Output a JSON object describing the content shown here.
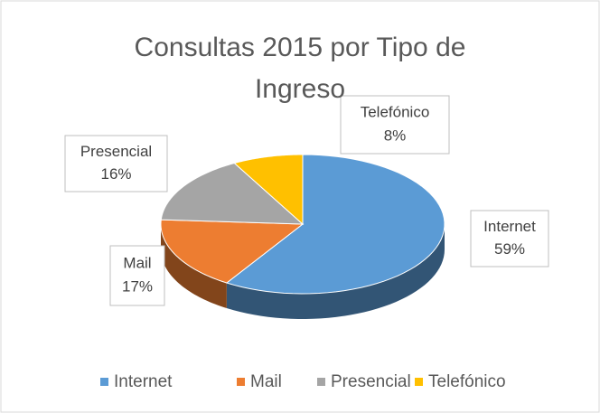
{
  "chart_data": {
    "type": "pie",
    "title": "Consultas 2015 por Tipo de Ingreso",
    "categories": [
      "Internet",
      "Mail",
      "Presencial",
      "Telefónico"
    ],
    "values": [
      59,
      17,
      16,
      8
    ],
    "value_labels": [
      "59%",
      "17%",
      "16%",
      "8%"
    ],
    "colors": [
      "#5b9bd5",
      "#ed7d31",
      "#a5a5a5",
      "#ffc000"
    ],
    "legend": "bottom"
  }
}
